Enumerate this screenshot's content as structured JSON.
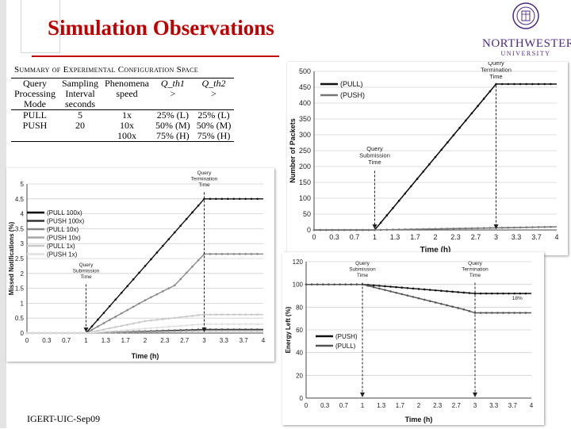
{
  "slide": {
    "title": "Simulation Observations",
    "footer": "IGERT-UIC-Sep09"
  },
  "logo": {
    "name": "NORTHWESTERN",
    "subname": "UNIVERSITY"
  },
  "table": {
    "caption": "Summary of Experimental Configuration Space",
    "headers": [
      [
        "Query",
        "Processing",
        "Mode"
      ],
      [
        "Sampling",
        "Interval",
        "seconds"
      ],
      [
        "Phenomena",
        "speed"
      ],
      [
        "Q_th1",
        ">"
      ],
      [
        "Q_th2",
        ">"
      ]
    ],
    "rows": [
      [
        "PULL",
        "5",
        "1x",
        "25% (L)",
        "25% (L)"
      ],
      [
        "PUSH",
        "20",
        "10x",
        "50% (M)",
        "50% (M)"
      ],
      [
        "",
        "",
        "100x",
        "75% (H)",
        "75% (H)"
      ]
    ]
  },
  "chart_data": [
    {
      "type": "line",
      "title": "",
      "xlabel": "Time (h)",
      "ylabel": "Number of Packets",
      "xlim": [
        0,
        4
      ],
      "ylim": [
        0,
        500
      ],
      "x_ticks": [
        "0",
        "0.3",
        "0.7",
        "1",
        "1.3",
        "1.7",
        "2",
        "2.3",
        "2.7",
        "3",
        "3.3",
        "3.7",
        "4"
      ],
      "y_ticks": [
        "0",
        "50",
        "100",
        "150",
        "200",
        "250",
        "300",
        "350",
        "400",
        "450",
        "500"
      ],
      "series": [
        {
          "name": "(PULL)",
          "color": "#111111",
          "x": [
            0,
            1,
            3,
            4
          ],
          "y": [
            0,
            0,
            460,
            460
          ]
        },
        {
          "name": "(PUSH)",
          "color": "#777777",
          "x": [
            0,
            1,
            4
          ],
          "y": [
            0,
            0,
            10
          ]
        }
      ],
      "annotations": [
        {
          "text": [
            "Query",
            "Submission",
            "Time"
          ],
          "x": 1
        },
        {
          "text": [
            "Query",
            "Termination",
            "Time"
          ],
          "x": 3
        }
      ]
    },
    {
      "type": "line",
      "title": "",
      "xlabel": "Time (h)",
      "ylabel": "Missed Notifications (%)",
      "xlim": [
        0,
        4
      ],
      "ylim": [
        0,
        5
      ],
      "x_ticks": [
        "0",
        "0.3",
        "0.7",
        "1",
        "1.3",
        "1.7",
        "2",
        "2.3",
        "2.7",
        "3",
        "3.3",
        "3.7",
        "4"
      ],
      "y_ticks": [
        "0",
        "0.5",
        "1",
        "1.5",
        "2",
        "2.5",
        "3",
        "3.5",
        "4",
        "4.5",
        "5"
      ],
      "series": [
        {
          "name": "(PULL 100x)",
          "color": "#111111",
          "x": [
            0,
            1,
            3,
            4
          ],
          "y": [
            0,
            0,
            4.5,
            4.5
          ]
        },
        {
          "name": "(PUSH 100x)",
          "color": "#333333",
          "x": [
            0,
            1,
            3,
            4
          ],
          "y": [
            0,
            0,
            0.12,
            0.12
          ]
        },
        {
          "name": "(PULL 10x)",
          "color": "#888888",
          "x": [
            0,
            1,
            2,
            2.5,
            3,
            4
          ],
          "y": [
            0,
            0,
            1.1,
            1.6,
            2.65,
            2.65
          ]
        },
        {
          "name": "(PUSH 10x)",
          "color": "#a6a6a6",
          "x": [
            0,
            1,
            3,
            4
          ],
          "y": [
            0,
            0,
            0.08,
            0.08
          ]
        },
        {
          "name": "(PULL 1x)",
          "color": "#c8c8c8",
          "x": [
            0,
            1,
            2,
            3,
            4
          ],
          "y": [
            0,
            0,
            0.4,
            0.62,
            0.62
          ]
        },
        {
          "name": "(PUSH 1x)",
          "color": "#e0e0e0",
          "x": [
            0,
            1,
            3,
            4
          ],
          "y": [
            0,
            0,
            0.3,
            0.3
          ]
        }
      ],
      "annotations": [
        {
          "text": [
            "Query",
            "Submission",
            "Time"
          ],
          "x": 1
        },
        {
          "text": [
            "Query",
            "Termination",
            "Time"
          ],
          "x": 3
        }
      ]
    },
    {
      "type": "line",
      "title": "",
      "xlabel": "Time (h)",
      "ylabel": "Energy Left (%)",
      "xlim": [
        0,
        4
      ],
      "ylim": [
        0,
        120
      ],
      "x_ticks": [
        "0",
        "0.3",
        "0.7",
        "1",
        "1.3",
        "1.7",
        "2",
        "2.3",
        "2.7",
        "3",
        "3.3",
        "3.7",
        "4"
      ],
      "y_ticks": [
        "0",
        "20",
        "40",
        "60",
        "80",
        "100",
        "120"
      ],
      "series": [
        {
          "name": "(PUSH)",
          "color": "#111111",
          "x": [
            0,
            1,
            3,
            4
          ],
          "y": [
            100,
            100,
            92,
            92
          ]
        },
        {
          "name": "(PULL)",
          "color": "#555555",
          "x": [
            0,
            1,
            2.8,
            3,
            4
          ],
          "y": [
            100,
            100,
            78,
            75,
            75
          ]
        }
      ],
      "annotations": [
        {
          "text": [
            "Query",
            "Submission",
            "Time"
          ],
          "x": 1
        },
        {
          "text": [
            "Query",
            "Termination",
            "Time"
          ],
          "x": 3
        },
        {
          "text": [
            "18%"
          ],
          "x": 3.75
        }
      ]
    }
  ]
}
